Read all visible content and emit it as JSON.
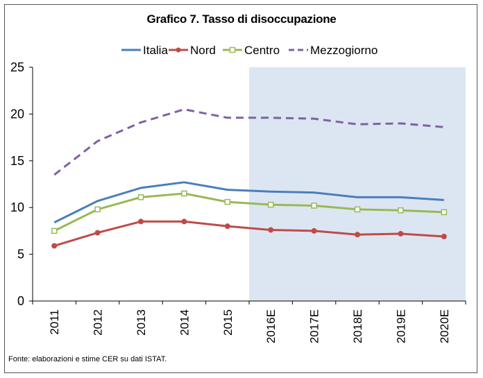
{
  "chart_data": {
    "type": "line",
    "title": "Grafico 7. Tasso di disoccupazione",
    "categories": [
      "2011",
      "2012",
      "2013",
      "2014",
      "2015",
      "2016E",
      "2017E",
      "2018E",
      "2019E",
      "2020E"
    ],
    "ylim": [
      0,
      25
    ],
    "yticks": [
      0,
      5,
      10,
      15,
      20,
      25
    ],
    "grid": false,
    "legend_position": "top",
    "forecast_shading_from": "2016E",
    "forecast_color": "#dce6f2",
    "series": [
      {
        "name": "Italia",
        "color": "#4a7ebb",
        "style": "solid",
        "marker": "none",
        "values": [
          8.4,
          10.7,
          12.1,
          12.7,
          11.9,
          11.7,
          11.6,
          11.1,
          11.1,
          10.8
        ]
      },
      {
        "name": "Nord",
        "color": "#be4b48",
        "style": "solid",
        "marker": "circle",
        "values": [
          5.9,
          7.3,
          8.5,
          8.5,
          8.0,
          7.6,
          7.5,
          7.1,
          7.2,
          6.9
        ]
      },
      {
        "name": "Centro",
        "color": "#98b954",
        "style": "solid",
        "marker": "square-open",
        "values": [
          7.5,
          9.8,
          11.1,
          11.5,
          10.6,
          10.3,
          10.2,
          9.8,
          9.7,
          9.5
        ]
      },
      {
        "name": "Mezzogiorno",
        "color": "#7e62a1",
        "style": "dashed",
        "marker": "none",
        "values": [
          13.5,
          17.1,
          19.1,
          20.5,
          19.6,
          19.6,
          19.5,
          18.9,
          19.0,
          18.6
        ]
      }
    ]
  },
  "source_note": "Fonte: elaborazioni e stime CER su dati ISTAT."
}
